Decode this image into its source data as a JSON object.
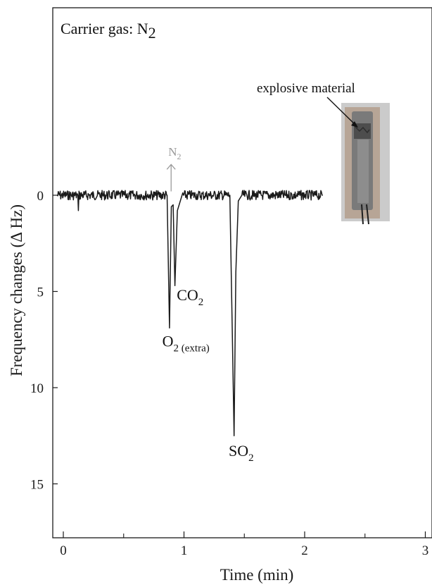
{
  "chart_data": {
    "type": "line",
    "title": "",
    "xlabel": "Time (min)",
    "ylabel": "Frequency changes (Δ Hz)",
    "xlim": [
      -0.08,
      3.0
    ],
    "ylim": [
      0,
      17.8
    ],
    "y_inverted": true,
    "x_ticks": [
      0,
      1,
      2,
      3
    ],
    "y_ticks": [
      0,
      5,
      10,
      15
    ],
    "x_minor_ticks": [
      0.5,
      1.5,
      2.5
    ],
    "grid": false,
    "legend": "none",
    "series": [
      {
        "color": "#1a1a1a",
        "x_range": [
          -0.05,
          2.15
        ],
        "baseline": 0,
        "noise_amplitude": 0.25,
        "points": [
          {
            "x": -0.05,
            "y": 0.0
          },
          {
            "x": 0.12,
            "y": 0.0
          },
          {
            "x": 0.125,
            "y": 0.8
          },
          {
            "x": 0.13,
            "y": 0.0
          },
          {
            "x": 0.86,
            "y": 0.0
          },
          {
            "x": 0.88,
            "y": 6.9
          },
          {
            "x": 0.895,
            "y": 0.6
          },
          {
            "x": 0.91,
            "y": 0.5
          },
          {
            "x": 0.925,
            "y": 4.7
          },
          {
            "x": 0.945,
            "y": 0.8
          },
          {
            "x": 0.99,
            "y": 0.1
          },
          {
            "x": 1.38,
            "y": 0.0
          },
          {
            "x": 1.4,
            "y": 7.0
          },
          {
            "x": 1.415,
            "y": 12.5
          },
          {
            "x": 1.43,
            "y": 4.0
          },
          {
            "x": 1.45,
            "y": 0.3
          },
          {
            "x": 1.48,
            "y": 0.0
          },
          {
            "x": 2.15,
            "y": 0.0
          }
        ]
      }
    ],
    "annotations": [
      {
        "text": "CO",
        "sub": "2",
        "x": 0.94,
        "y": 5.45
      },
      {
        "text": "O",
        "sub": "2 (extra)",
        "x": 0.82,
        "y": 7.85
      },
      {
        "text": "SO",
        "sub": "2",
        "x": 1.37,
        "y": 13.55
      },
      {
        "text": "N",
        "sub": "2",
        "x": 0.87,
        "y": -2.05,
        "color": "#9a9a9a",
        "arrow_from_y": -0.2,
        "arrow_to_y": -1.6
      }
    ],
    "carrier_label": {
      "text": "Carrier gas: N",
      "sub": "2"
    },
    "photo_callout": "explosive material"
  },
  "colors": {
    "line": "#1a1a1a",
    "axis": "#1a1a1a",
    "n2_marker": "#9a9a9a",
    "photo_background": "#c9c9c9",
    "photo_tube": "#6c6c6c"
  }
}
